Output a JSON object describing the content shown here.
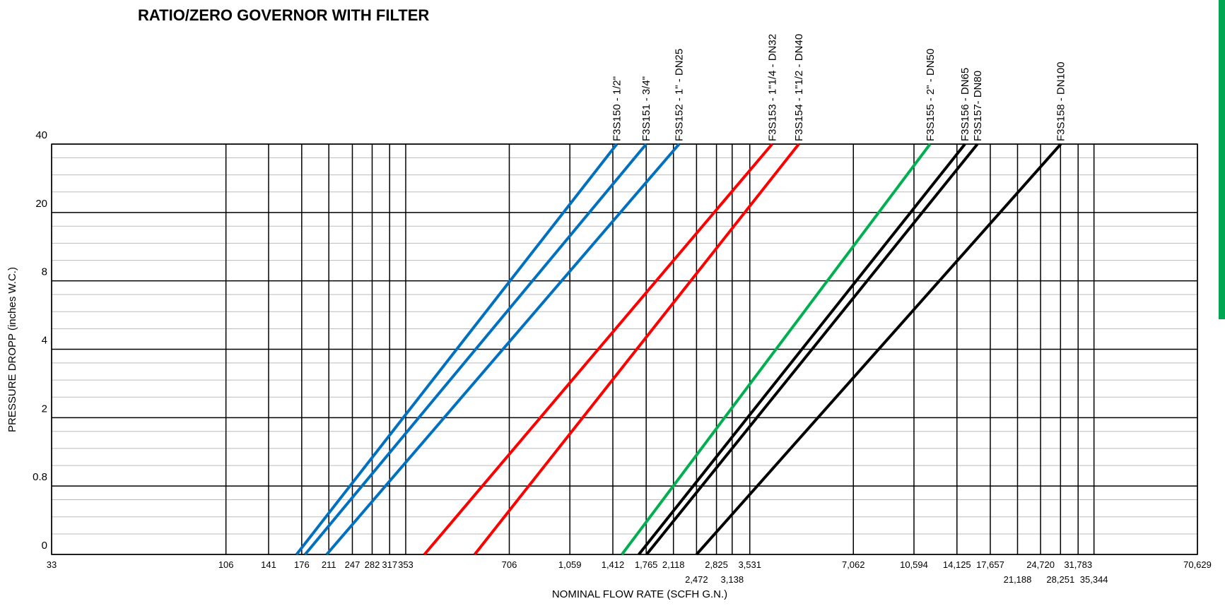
{
  "chart_data": {
    "type": "line",
    "title": "RATIO/ZERO  GOVERNOR WITH FILTER",
    "x_label": "NOMINAL FLOW RATE   (SCFH G.N.)",
    "y_label": "PRESSURE DROPP (inches W.C.)",
    "x_log_scale": true,
    "grid": true,
    "xlim": [
      33,
      70629
    ],
    "ylim": [
      0,
      40
    ],
    "xticks": [
      33,
      106,
      141,
      176,
      211,
      247,
      282,
      317,
      353,
      706,
      {
        "value": 1059,
        "label": "1,059"
      },
      {
        "value": 1412,
        "label": "1,412"
      },
      {
        "value": 1765,
        "label": "1,765"
      },
      {
        "value": 2118,
        "label": "2,118"
      },
      {
        "value": 2472,
        "label": "2,472"
      },
      {
        "value": 2825,
        "label": "2,825"
      },
      {
        "value": 3138,
        "label": "3,138"
      },
      {
        "value": 3531,
        "label": "3,531"
      },
      {
        "value": 7062,
        "label": "7,062"
      },
      {
        "value": 10594,
        "label": "10,594"
      },
      {
        "value": 14125,
        "label": "14,125"
      },
      {
        "value": 17657,
        "label": "17,657"
      },
      {
        "value": 21188,
        "label": "21,188"
      },
      {
        "value": 24720,
        "label": "24,720"
      },
      {
        "value": 28251,
        "label": "28,251"
      },
      {
        "value": 31783,
        "label": "31,783"
      },
      {
        "value": 35344,
        "label": "35,344"
      },
      {
        "value": 70629,
        "label": "70,629"
      }
    ],
    "yticks": [
      0,
      0.8,
      2,
      4,
      8,
      20,
      40
    ],
    "series": [
      {
        "name": "F3S150 - 1/2\"",
        "color": "#0070c0",
        "x": [
          170,
          1450
        ],
        "values": [
          0,
          40
        ]
      },
      {
        "name": "F3S151 - 3/4\"",
        "color": "#0070c0",
        "x": [
          180,
          1765
        ],
        "values": [
          0,
          40
        ]
      },
      {
        "name": "F3S152 - 1\" - DN25",
        "color": "#0070c0",
        "x": [
          208,
          2200
        ],
        "values": [
          0,
          40
        ]
      },
      {
        "name": "F3S153 - 1\"1/4 - DN32",
        "color": "#ff0000",
        "x": [
          400,
          4100
        ],
        "values": [
          0,
          40
        ]
      },
      {
        "name": "F3S154 - 1\"1/2 - DN40",
        "color": "#ff0000",
        "x": [
          560,
          4900
        ],
        "values": [
          0,
          40
        ]
      },
      {
        "name": "F3S155 - 2\" - DN50",
        "color": "#00b050",
        "x": [
          1500,
          11800
        ],
        "values": [
          0,
          40
        ]
      },
      {
        "name": "F3S156 - DN65",
        "color": "#000000",
        "x": [
          1680,
          14900
        ],
        "values": [
          0,
          40
        ]
      },
      {
        "name": "F3S157- DN80",
        "color": "#000000",
        "x": [
          1770,
          16200
        ],
        "values": [
          0,
          40
        ]
      },
      {
        "name": "F3S158 - DN100",
        "color": "#000000",
        "x": [
          2472,
          28300
        ],
        "values": [
          0,
          40
        ]
      }
    ]
  }
}
